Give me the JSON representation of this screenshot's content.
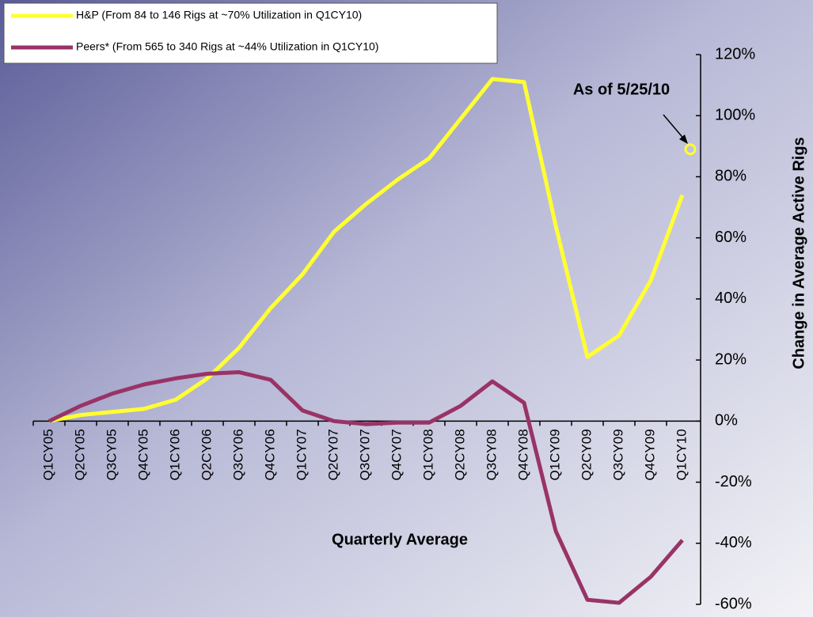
{
  "chart_data": {
    "type": "line",
    "x_label": "Quarterly Average",
    "y_label": "Change in Average Active Rigs",
    "categories": [
      "Q1CY05",
      "Q2CY05",
      "Q3CY05",
      "Q4CY05",
      "Q1CY06",
      "Q2CY06",
      "Q3CY06",
      "Q4CY06",
      "Q1CY07",
      "Q2CY07",
      "Q3CY07",
      "Q4CY07",
      "Q1CY08",
      "Q2CY08",
      "Q3CY08",
      "Q4CY08",
      "Q1CY09",
      "Q2CY09",
      "Q3CY09",
      "Q4CY09",
      "Q1CY10"
    ],
    "series": [
      {
        "name": "H&P (From 84 to 146 Rigs at ~70% Utilization in Q1CY10)",
        "color": "#ffff33",
        "values": [
          0,
          2,
          3,
          4,
          7,
          14,
          24,
          37,
          48,
          62,
          71,
          79,
          86,
          99,
          112,
          111,
          64,
          21,
          28,
          46,
          74
        ]
      },
      {
        "name": "Peers* (From 565 to 340 Rigs at ~44% Utilization in Q1CY10)",
        "color": "#993366",
        "values": [
          0,
          5,
          9,
          12,
          14,
          15.5,
          16,
          13.5,
          3.5,
          0,
          -1,
          -0.5,
          -0.5,
          5,
          13,
          6,
          -36,
          -58.5,
          -59.5,
          -51,
          -39
        ]
      }
    ],
    "annotation": {
      "text": "As of 5/25/10",
      "value": 89
    },
    "ylim": [
      -60,
      120
    ],
    "yticks": [
      {
        "value": -60,
        "label": "-60%"
      },
      {
        "value": -40,
        "label": "-40%"
      },
      {
        "value": -20,
        "label": "-20%"
      },
      {
        "value": 0,
        "label": "0%"
      },
      {
        "value": 20,
        "label": "20%"
      },
      {
        "value": 40,
        "label": "40%"
      },
      {
        "value": 60,
        "label": "60%"
      },
      {
        "value": 80,
        "label": "80%"
      },
      {
        "value": 100,
        "label": "100%"
      },
      {
        "value": 120,
        "label": "120%"
      }
    ]
  }
}
